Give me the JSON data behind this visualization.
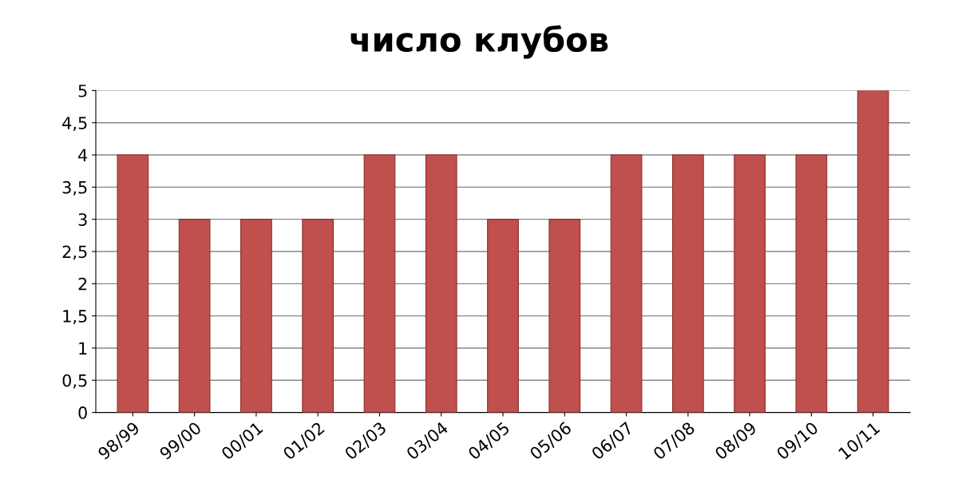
{
  "chart_data": {
    "type": "bar",
    "title": "число клубов",
    "categories": [
      "98/99",
      "99/00",
      "00/01",
      "01/02",
      "02/03",
      "03/04",
      "04/05",
      "05/06",
      "06/07",
      "07/08",
      "08/09",
      "09/10",
      "10/11"
    ],
    "values": [
      4,
      3,
      3,
      3,
      4,
      4,
      3,
      3,
      4,
      4,
      4,
      4,
      5
    ],
    "color": "#c0504d",
    "ylim": [
      0,
      5
    ],
    "yticks": [
      0,
      {
        "value": 0.5,
        "label": "0,5"
      },
      1,
      {
        "value": 1.5,
        "label": "1,5"
      },
      2,
      {
        "value": 2.5,
        "label": "2,5"
      },
      3,
      {
        "value": 3.5,
        "label": "3,5"
      },
      4,
      {
        "value": 4.5,
        "label": "4,5"
      },
      5
    ],
    "grid": "y",
    "legend": false
  }
}
